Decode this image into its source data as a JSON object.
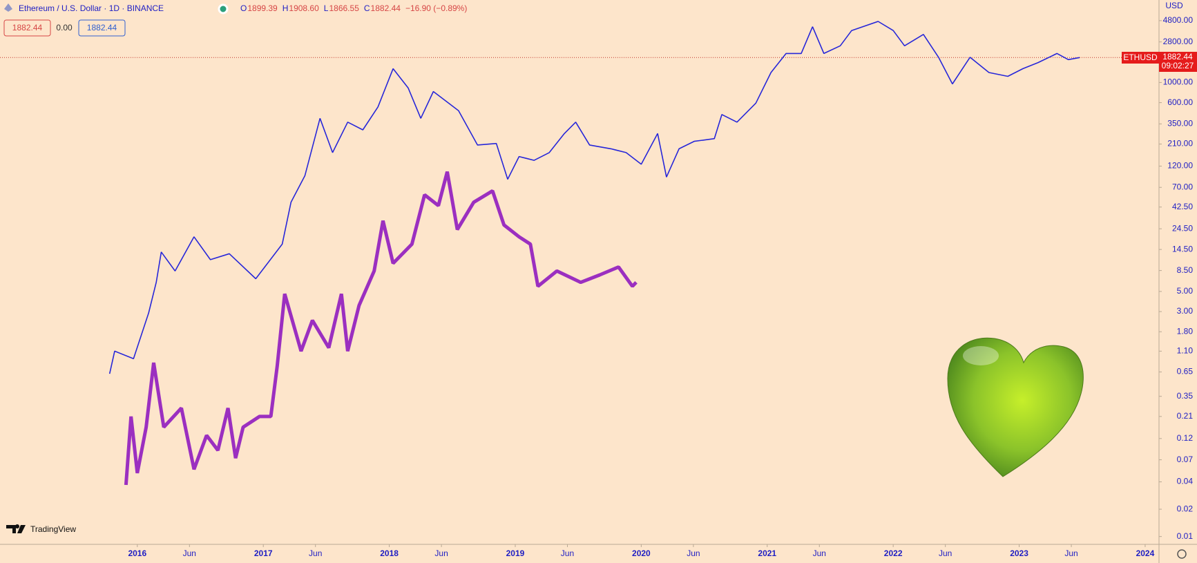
{
  "header": {
    "title": "Ethereum / U.S. Dollar · 1D · BINANCE",
    "ohlc": [
      {
        "label": "O",
        "value": "1899.39"
      },
      {
        "label": "H",
        "value": "1908.60"
      },
      {
        "label": "L",
        "value": "1866.55"
      },
      {
        "label": "C",
        "value": "1882.44"
      }
    ],
    "change": "−16.90 (−0.89%)",
    "bid": "1882.44",
    "spread": "0.00",
    "ask": "1882.44",
    "currency": "USD",
    "logo": "TradingView"
  },
  "price_tag": {
    "symbol": "ETHUSD",
    "price": "1882.44",
    "countdown": "09:02:27"
  },
  "chart_data": {
    "type": "line",
    "log_scale": true,
    "grid": false,
    "last_price": 1882.44,
    "xlim": [
      2014.91,
      2024.11
    ],
    "ylim": [
      0.0082,
      8100
    ],
    "xticks": [
      2016,
      {
        "value": 2016.414,
        "label": "Jun"
      },
      2017,
      {
        "value": 2017.414,
        "label": "Jun"
      },
      2018,
      {
        "value": 2018.414,
        "label": "Jun"
      },
      2019,
      {
        "value": 2019.414,
        "label": "Jun"
      },
      2020,
      {
        "value": 2020.414,
        "label": "Jun"
      },
      2021,
      {
        "value": 2021.414,
        "label": "Jun"
      },
      2022,
      {
        "value": 2022.414,
        "label": "Jun"
      },
      2023,
      {
        "value": 2023.414,
        "label": "Jun"
      },
      2024
    ],
    "yticks": [
      {
        "value": 4800,
        "label": "4800.00"
      },
      {
        "value": 2800,
        "label": "2800.00"
      },
      {
        "value": 1000,
        "label": "1000.00"
      },
      {
        "value": 600,
        "label": "600.00"
      },
      {
        "value": 350,
        "label": "350.00"
      },
      {
        "value": 210,
        "label": "210.00"
      },
      {
        "value": 120,
        "label": "120.00"
      },
      {
        "value": 70,
        "label": "70.00"
      },
      {
        "value": 42.5,
        "label": "42.50"
      },
      {
        "value": 24.5,
        "label": "24.50"
      },
      {
        "value": 14.5,
        "label": "14.50"
      },
      {
        "value": 8.5,
        "label": "8.50"
      },
      {
        "value": 5,
        "label": "5.00"
      },
      {
        "value": 3,
        "label": "3.00"
      },
      {
        "value": 1.8,
        "label": "1.80"
      },
      {
        "value": 1.1,
        "label": "1.10"
      },
      {
        "value": 0.65,
        "label": "0.65"
      },
      {
        "value": 0.35,
        "label": "0.35"
      },
      {
        "value": 0.21,
        "label": "0.21"
      },
      {
        "value": 0.12,
        "label": "0.12"
      },
      {
        "value": 0.07,
        "label": "0.07"
      },
      {
        "value": 0.04,
        "label": "0.04"
      },
      {
        "value": 0.02,
        "label": "0.02"
      },
      {
        "value": 0.01,
        "label": "0.01"
      }
    ],
    "series": [
      {
        "color": "#2626d9",
        "width": 1.6,
        "x": [
          2015.78,
          2015.82,
          2015.97,
          2016.09,
          2016.15,
          2016.19,
          2016.3,
          2016.45,
          2016.58,
          2016.73,
          2016.94,
          2017.15,
          2017.22,
          2017.33,
          2017.45,
          2017.55,
          2017.67,
          2017.79,
          2017.91,
          2018.03,
          2018.15,
          2018.25,
          2018.35,
          2018.55,
          2018.7,
          2018.85,
          2018.94,
          2019.03,
          2019.15,
          2019.27,
          2019.39,
          2019.48,
          2019.59,
          2019.76,
          2019.88,
          2020.0,
          2020.13,
          2020.2,
          2020.3,
          2020.42,
          2020.58,
          2020.64,
          2020.76,
          2020.91,
          2021.03,
          2021.15,
          2021.27,
          2021.36,
          2021.45,
          2021.58,
          2021.67,
          2021.88,
          2022.0,
          2022.09,
          2022.24,
          2022.36,
          2022.47,
          2022.61,
          2022.76,
          2022.91,
          2023.03,
          2023.15,
          2023.3,
          2023.39,
          2023.48
        ],
        "values": [
          0.62,
          1.1,
          0.91,
          2.9,
          6.3,
          13.6,
          8.4,
          20,
          11.2,
          13,
          6.9,
          16.6,
          48,
          94,
          403,
          169,
          366,
          301,
          538,
          1420,
          873,
          403,
          795,
          489,
          205,
          213,
          86,
          153,
          139,
          169,
          274,
          366,
          205,
          186,
          169,
          126,
          274,
          91,
          186,
          225,
          241,
          444,
          366,
          593,
          1288,
          2089,
          2089,
          4111,
          2089,
          2535,
          3733,
          4710,
          3733,
          2535,
          3388,
          1897,
          964,
          1897,
          1288,
          1169,
          1420,
          1656,
          2089,
          1787,
          1882
        ]
      },
      {
        "color": "#9b2fc0",
        "width": 5,
        "x": [
          2015.91,
          2015.95,
          2016.0,
          2016.07,
          2016.13,
          2016.21,
          2016.35,
          2016.45,
          2016.55,
          2016.64,
          2016.72,
          2016.78,
          2016.84,
          2016.97,
          2017.06,
          2017.11,
          2017.17,
          2017.3,
          2017.39,
          2017.52,
          2017.62,
          2017.67,
          2017.76,
          2017.88,
          2017.95,
          2018.03,
          2018.18,
          2018.28,
          2018.39,
          2018.46,
          2018.54,
          2018.67,
          2018.82,
          2018.91,
          2019.03,
          2019.12,
          2019.18,
          2019.33,
          2019.52,
          2019.67,
          2019.82,
          2019.93,
          2019.96
        ],
        "values": [
          0.037,
          0.21,
          0.05,
          0.16,
          0.82,
          0.16,
          0.26,
          0.055,
          0.13,
          0.089,
          0.26,
          0.073,
          0.16,
          0.21,
          0.21,
          0.75,
          4.7,
          1.1,
          2.4,
          1.2,
          4.7,
          1.1,
          3.5,
          8.4,
          30,
          10.2,
          16.6,
          58,
          44,
          104,
          24,
          48,
          64,
          27,
          20,
          16.6,
          5.7,
          8.4,
          6.3,
          7.6,
          9.3,
          5.7,
          6.3
        ]
      }
    ]
  }
}
